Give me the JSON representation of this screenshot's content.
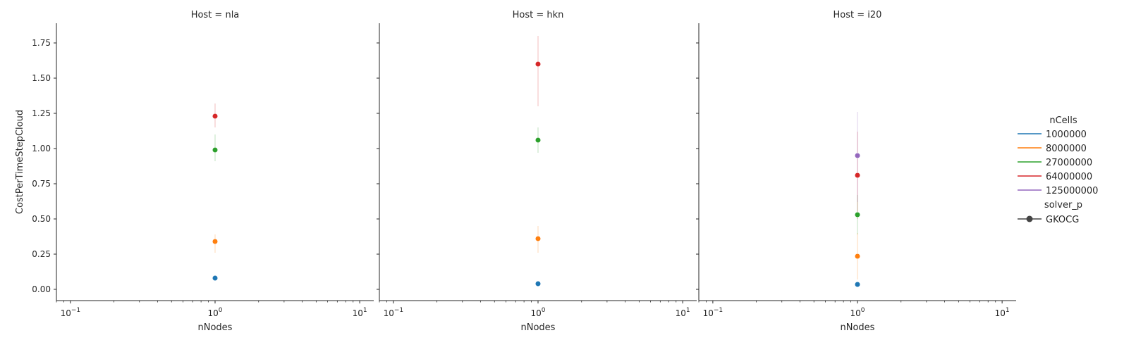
{
  "chart_data": {
    "type": "scatter",
    "x_scale": "log",
    "xlabel": "nNodes",
    "ylabel": "CostPerTimeStepCloud",
    "xlim": [
      0.08,
      12.5
    ],
    "ylim": [
      -0.08,
      1.89
    ],
    "x_ticks": [
      {
        "base": "10",
        "exp": "−1"
      },
      {
        "base": "10",
        "exp": "0"
      },
      {
        "base": "10",
        "exp": "1"
      }
    ],
    "y_ticks": [
      "0.00",
      "0.25",
      "0.50",
      "0.75",
      "1.00",
      "1.25",
      "1.50",
      "1.75"
    ],
    "grid": false,
    "legend": {
      "position": "right",
      "hue_title": "nCells",
      "hue_entries": [
        {
          "label": "1000000",
          "color": "#1f77b4"
        },
        {
          "label": "8000000",
          "color": "#ff7f0e"
        },
        {
          "label": "27000000",
          "color": "#2ca02c"
        },
        {
          "label": "64000000",
          "color": "#d62728"
        },
        {
          "label": "125000000",
          "color": "#9467bd"
        }
      ],
      "style_title": "solver_p",
      "style_entries": [
        {
          "label": "GKOCG",
          "color": "#444444"
        }
      ]
    },
    "panels": [
      {
        "title": "Host = nla",
        "points": [
          {
            "series": "1000000",
            "x": 1,
            "y": 0.08,
            "lo": 0.07,
            "hi": 0.09
          },
          {
            "series": "8000000",
            "x": 1,
            "y": 0.34,
            "lo": 0.26,
            "hi": 0.39
          },
          {
            "series": "27000000",
            "x": 1,
            "y": 0.99,
            "lo": 0.91,
            "hi": 1.1
          },
          {
            "series": "64000000",
            "x": 1,
            "y": 1.23,
            "lo": 1.15,
            "hi": 1.32
          }
        ]
      },
      {
        "title": "Host = hkn",
        "points": [
          {
            "series": "1000000",
            "x": 1,
            "y": 0.04,
            "lo": 0.03,
            "hi": 0.05
          },
          {
            "series": "8000000",
            "x": 1,
            "y": 0.36,
            "lo": 0.26,
            "hi": 0.45
          },
          {
            "series": "27000000",
            "x": 1,
            "y": 1.06,
            "lo": 0.97,
            "hi": 1.15
          },
          {
            "series": "64000000",
            "x": 1,
            "y": 1.6,
            "lo": 1.3,
            "hi": 1.8
          }
        ]
      },
      {
        "title": "Host = i20",
        "points": [
          {
            "series": "1000000",
            "x": 1,
            "y": 0.035,
            "lo": 0.025,
            "hi": 0.045
          },
          {
            "series": "8000000",
            "x": 1,
            "y": 0.235,
            "lo": 0.07,
            "hi": 0.4
          },
          {
            "series": "27000000",
            "x": 1,
            "y": 0.53,
            "lo": 0.39,
            "hi": 0.67
          },
          {
            "series": "64000000",
            "x": 1,
            "y": 0.81,
            "lo": 0.5,
            "hi": 1.12
          },
          {
            "series": "125000000",
            "x": 1,
            "y": 0.95,
            "lo": 0.62,
            "hi": 1.26
          }
        ]
      }
    ]
  }
}
